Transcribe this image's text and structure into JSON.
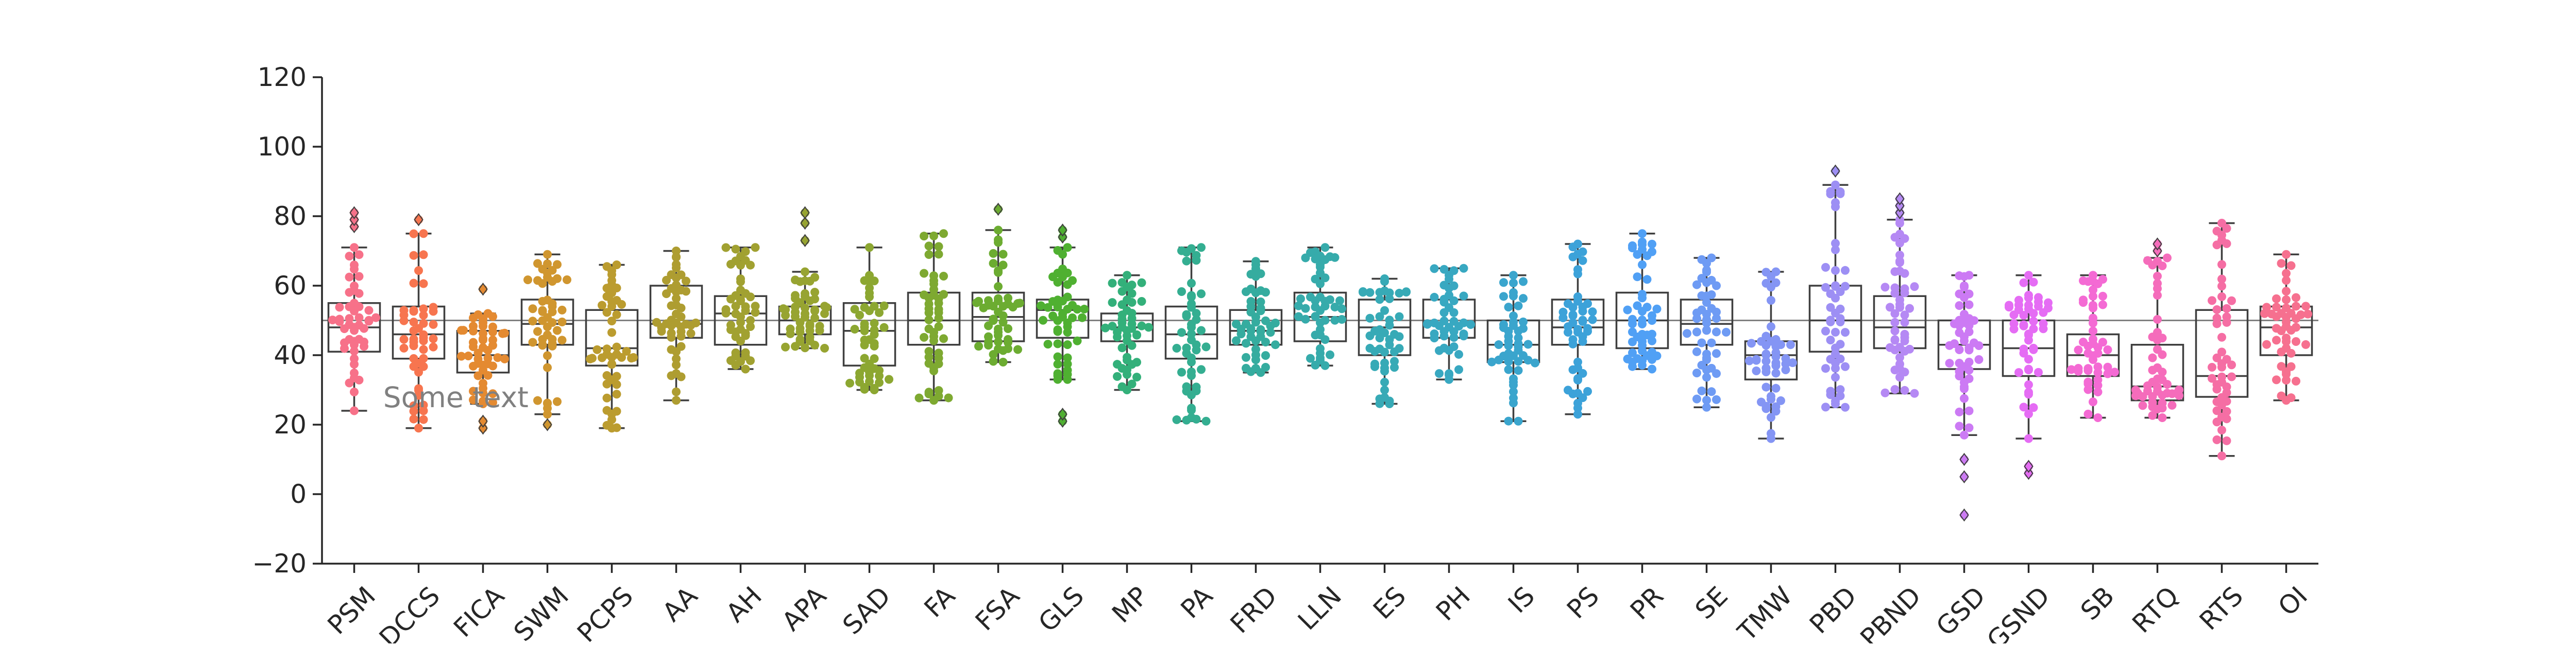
{
  "chart_data": {
    "type": "box",
    "overlay": "swarm",
    "title": "",
    "xlabel": "",
    "ylabel": "",
    "ylim": [
      -20,
      120
    ],
    "yticks": [
      -20,
      0,
      20,
      40,
      60,
      80,
      100,
      120
    ],
    "reference_line": 50,
    "annotation": {
      "text": "Some text",
      "x_category": "DCCS",
      "y": 28
    },
    "grid": false,
    "legend": "none",
    "categories": [
      "PSM",
      "DCCS",
      "FICA",
      "SWM",
      "PCPS",
      "AA",
      "AH",
      "APA",
      "SAD",
      "FA",
      "FSA",
      "GLS",
      "MP",
      "PA",
      "FRD",
      "LLN",
      "ES",
      "PH",
      "IS",
      "PS",
      "PR",
      "SE",
      "TMW",
      "PBD",
      "PBND",
      "GSD",
      "GSND",
      "SB",
      "RTQ",
      "RTS",
      "OI"
    ],
    "colors": [
      "#f77189",
      "#f7754f",
      "#e48a31",
      "#d0962f",
      "#bb9c2f",
      "#ae9d31",
      "#a1a131",
      "#97a431",
      "#8ca731",
      "#7ea931",
      "#6cac31",
      "#4fb031",
      "#33b07a",
      "#34ae91",
      "#35ac9f",
      "#36abab",
      "#37aab6",
      "#38a8c1",
      "#3aa5cd",
      "#3ca2d9",
      "#50a0f5",
      "#6e9bf4",
      "#8495f4",
      "#9d8ff4",
      "#b589f4",
      "#cc7af4",
      "#e56cf4",
      "#f46ad4",
      "#f56cbb",
      "#f56ea4",
      "#f6708f"
    ],
    "boxes": [
      {
        "category": "PSM",
        "whisker_low": 24,
        "q1": 41,
        "median": 48,
        "q3": 55,
        "whisker_high": 71,
        "outliers": [
          77,
          79,
          81
        ]
      },
      {
        "category": "DCCS",
        "whisker_low": 19,
        "q1": 39,
        "median": 46,
        "q3": 54,
        "whisker_high": 75,
        "outliers": [
          79
        ]
      },
      {
        "category": "FICA",
        "whisker_low": 26,
        "q1": 35,
        "median": 40,
        "q3": 47,
        "whisker_high": 52,
        "outliers": [
          19,
          21,
          59
        ]
      },
      {
        "category": "SWM",
        "whisker_low": 23,
        "q1": 43,
        "median": 49,
        "q3": 56,
        "whisker_high": 69,
        "outliers": [
          20
        ]
      },
      {
        "category": "PCPS",
        "whisker_low": 19,
        "q1": 37,
        "median": 42,
        "q3": 53,
        "whisker_high": 66,
        "outliers": []
      },
      {
        "category": "AA",
        "whisker_low": 27,
        "q1": 45,
        "median": 49,
        "q3": 60,
        "whisker_high": 70,
        "outliers": []
      },
      {
        "category": "AH",
        "whisker_low": 36,
        "q1": 43,
        "median": 52,
        "q3": 57,
        "whisker_high": 71,
        "outliers": []
      },
      {
        "category": "APA",
        "whisker_low": 42,
        "q1": 46,
        "median": 50,
        "q3": 54,
        "whisker_high": 64,
        "outliers": [
          73,
          78,
          81
        ]
      },
      {
        "category": "SAD",
        "whisker_low": 30,
        "q1": 37,
        "median": 47,
        "q3": 55,
        "whisker_high": 71,
        "outliers": []
      },
      {
        "category": "FA",
        "whisker_low": 27,
        "q1": 43,
        "median": 50,
        "q3": 58,
        "whisker_high": 75,
        "outliers": []
      },
      {
        "category": "FSA",
        "whisker_low": 38,
        "q1": 44,
        "median": 51,
        "q3": 58,
        "whisker_high": 76,
        "outliers": [
          82
        ]
      },
      {
        "category": "GLS",
        "whisker_low": 33,
        "q1": 45,
        "median": 53,
        "q3": 56,
        "whisker_high": 71,
        "outliers": [
          21,
          23,
          74,
          76
        ]
      },
      {
        "category": "MP",
        "whisker_low": 30,
        "q1": 44,
        "median": 48,
        "q3": 52,
        "whisker_high": 63,
        "outliers": []
      },
      {
        "category": "PA",
        "whisker_low": 21,
        "q1": 39,
        "median": 46,
        "q3": 54,
        "whisker_high": 71,
        "outliers": []
      },
      {
        "category": "FRD",
        "whisker_low": 35,
        "q1": 43,
        "median": 47,
        "q3": 53,
        "whisker_high": 67,
        "outliers": []
      },
      {
        "category": "LLN",
        "whisker_low": 37,
        "q1": 44,
        "median": 51,
        "q3": 58,
        "whisker_high": 71,
        "outliers": []
      },
      {
        "category": "ES",
        "whisker_low": 26,
        "q1": 40,
        "median": 48,
        "q3": 56,
        "whisker_high": 62,
        "outliers": []
      },
      {
        "category": "PH",
        "whisker_low": 33,
        "q1": 45,
        "median": 49,
        "q3": 56,
        "whisker_high": 65,
        "outliers": []
      },
      {
        "category": "IS",
        "whisker_low": 21,
        "q1": 38,
        "median": 43,
        "q3": 50,
        "whisker_high": 63,
        "outliers": []
      },
      {
        "category": "PS",
        "whisker_low": 23,
        "q1": 43,
        "median": 48,
        "q3": 56,
        "whisker_high": 72,
        "outliers": []
      },
      {
        "category": "PR",
        "whisker_low": 36,
        "q1": 42,
        "median": 50,
        "q3": 58,
        "whisker_high": 75,
        "outliers": []
      },
      {
        "category": "SE",
        "whisker_low": 25,
        "q1": 43,
        "median": 49,
        "q3": 56,
        "whisker_high": 68,
        "outliers": []
      },
      {
        "category": "TMW",
        "whisker_low": 16,
        "q1": 33,
        "median": 40,
        "q3": 44,
        "whisker_high": 64,
        "outliers": []
      },
      {
        "category": "PBD",
        "whisker_low": 25,
        "q1": 41,
        "median": 50,
        "q3": 60,
        "whisker_high": 89,
        "outliers": [
          93
        ]
      },
      {
        "category": "PBND",
        "whisker_low": 29,
        "q1": 42,
        "median": 48,
        "q3": 57,
        "whisker_high": 79,
        "outliers": [
          81,
          83,
          85
        ]
      },
      {
        "category": "GSD",
        "whisker_low": 17,
        "q1": 36,
        "median": 43,
        "q3": 50,
        "whisker_high": 63,
        "outliers": [
          -6,
          5,
          10
        ]
      },
      {
        "category": "GSND",
        "whisker_low": 16,
        "q1": 34,
        "median": 42,
        "q3": 50,
        "whisker_high": 63,
        "outliers": [
          6,
          8
        ]
      },
      {
        "category": "SB",
        "whisker_low": 22,
        "q1": 34,
        "median": 40,
        "q3": 46,
        "whisker_high": 63,
        "outliers": []
      },
      {
        "category": "RTQ",
        "whisker_low": 22,
        "q1": 27,
        "median": 31,
        "q3": 43,
        "whisker_high": 68,
        "outliers": [
          70,
          72
        ]
      },
      {
        "category": "RTS",
        "whisker_low": 11,
        "q1": 28,
        "median": 34,
        "q3": 53,
        "whisker_high": 78,
        "outliers": []
      },
      {
        "category": "OI",
        "whisker_low": 27,
        "q1": 40,
        "median": 48,
        "q3": 54,
        "whisker_high": 69,
        "outliers": []
      }
    ]
  }
}
